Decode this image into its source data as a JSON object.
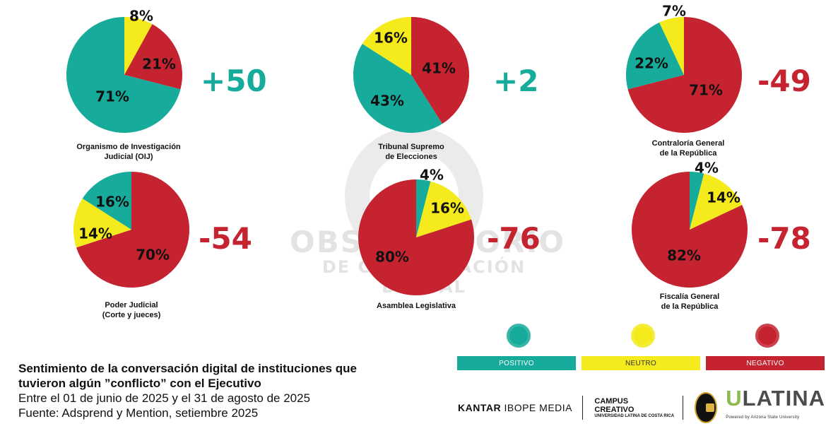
{
  "colors": {
    "positive": "#16ab9a",
    "neutral": "#f4ea1c",
    "negative": "#c4232f",
    "textDark": "#111111"
  },
  "chart_data": [
    {
      "type": "pie",
      "title": "Organismo de Investigación Judicial (OIJ)",
      "title_lines": [
        "Organismo de Investigación",
        "Judicial (OIJ)"
      ],
      "score": "+50",
      "score_color": "#16ab9a",
      "slices": [
        {
          "label": "8%",
          "value": 8,
          "color": "#f4ea1c"
        },
        {
          "label": "21%",
          "value": 21,
          "color": "#c4232f"
        },
        {
          "label": "71%",
          "value": 71,
          "color": "#16ab9a"
        }
      ]
    },
    {
      "type": "pie",
      "title": "Tribunal Supremo de Elecciones",
      "title_lines": [
        "Tribunal Supremo",
        "de Elecciones"
      ],
      "score": "+2",
      "score_color": "#16ab9a",
      "slices": [
        {
          "label": "41%",
          "value": 41,
          "color": "#c4232f"
        },
        {
          "label": "43%",
          "value": 43,
          "color": "#16ab9a"
        },
        {
          "label": "16%",
          "value": 16,
          "color": "#f4ea1c"
        }
      ]
    },
    {
      "type": "pie",
      "title": "Contraloría General de la República",
      "title_lines": [
        "Contraloría General",
        "de la República"
      ],
      "score": "-49",
      "score_color": "#c4232f",
      "slices": [
        {
          "label": "71%",
          "value": 71,
          "color": "#c4232f"
        },
        {
          "label": "22%",
          "value": 22,
          "color": "#16ab9a"
        },
        {
          "label": "7%",
          "value": 7,
          "color": "#f4ea1c"
        }
      ]
    },
    {
      "type": "pie",
      "title": "Poder Judicial (Corte y jueces)",
      "title_lines": [
        "Poder Judicial",
        "(Corte y jueces)"
      ],
      "score": "-54",
      "score_color": "#c4232f",
      "slices": [
        {
          "label": "70%",
          "value": 70,
          "color": "#c4232f"
        },
        {
          "label": "14%",
          "value": 14,
          "color": "#f4ea1c"
        },
        {
          "label": "16%",
          "value": 16,
          "color": "#16ab9a"
        }
      ]
    },
    {
      "type": "pie",
      "title": "Asamblea Legislativa",
      "title_lines": [
        "Asamblea Legislativa"
      ],
      "score": "-76",
      "score_color": "#c4232f",
      "slices": [
        {
          "label": "4%",
          "value": 4,
          "color": "#16ab9a"
        },
        {
          "label": "16%",
          "value": 16,
          "color": "#f4ea1c"
        },
        {
          "label": "80%",
          "value": 80,
          "color": "#c4232f"
        }
      ]
    },
    {
      "type": "pie",
      "title": "Fiscalía General de la República",
      "title_lines": [
        "Fiscalía General",
        "de la República"
      ],
      "score": "-78",
      "score_color": "#c4232f",
      "slices": [
        {
          "label": "4%",
          "value": 4,
          "color": "#16ab9a"
        },
        {
          "label": "14%",
          "value": 14,
          "color": "#f4ea1c"
        },
        {
          "label": "82%",
          "value": 82,
          "color": "#c4232f"
        }
      ]
    }
  ],
  "watermark": {
    "line1": "OBSERVATORIO",
    "line2": "DE COMUNICACIÓN DIGITAL"
  },
  "legend": [
    {
      "label": "POSITIVO",
      "color": "#16ab9a",
      "icon": "positive-chat-icon"
    },
    {
      "label": "NEUTRO",
      "color": "#f4ea1c",
      "icon": "neutral-robot-icon"
    },
    {
      "label": "NEGATIVO",
      "color": "#c4232f",
      "icon": "negative-chat-icon"
    }
  ],
  "footer": {
    "title_line1": "Sentimiento de la conversación digital de instituciones que",
    "title_line2": "tuvieron algún ”conflicto” con el Ejecutivo",
    "date_range": "Entre el 01 de junio de 2025 y el 31 de agosto de 2025",
    "source": "Fuente: Adsprend y Mention, setiembre 2025"
  },
  "logos": {
    "kantar": "KANTAR",
    "ibope": "IBOPE MEDIA",
    "campus_line1": "CAMPUS",
    "campus_line2": "CREATIVO",
    "campus_sub": "UNIVERSIDAD LATINA DE COSTA RICA",
    "ulatina_u": "U",
    "ulatina_rest": "LATINA",
    "ulatina_powered": "Powered by Arizona State University"
  }
}
